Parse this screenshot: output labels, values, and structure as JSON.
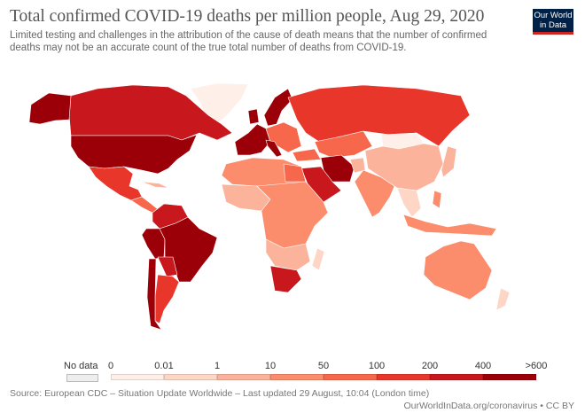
{
  "header": {
    "title": "Total confirmed COVID-19 deaths per million people, Aug 29, 2020",
    "subtitle": "Limited testing and challenges in the attribution of the cause of death means that the number of confirmed deaths may not be an accurate count of the true total number of deaths from COVID-19.",
    "logo_line1": "Our World",
    "logo_line2": "in Data"
  },
  "legend": {
    "no_data_label": "No data",
    "no_data_color": "#eeeeee",
    "labels": [
      "0",
      "0.01",
      "1",
      "10",
      "50",
      "100",
      "200",
      "400",
      ">600"
    ],
    "colors": [
      "#fef0e9",
      "#fdd6c6",
      "#fcb39b",
      "#fb8d6d",
      "#f6674b",
      "#e9362b",
      "#c8171d",
      "#9b0009"
    ]
  },
  "footer": {
    "source": "Source: European CDC – Situation Update Worldwide – Last updated 29 August, 10:04 (London time)",
    "link": "OurWorldInData.org/coronavirus • CC BY"
  }
}
